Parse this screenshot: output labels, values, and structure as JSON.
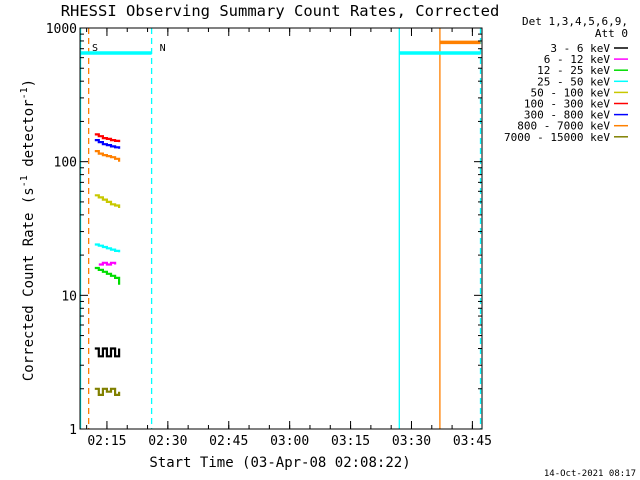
{
  "chart_data": {
    "type": "line",
    "title": "RHESSI Observing Summary Count Rates, Corrected",
    "xlabel": "Start Time (03-Apr-08 02:08:22)",
    "ylabel_main": "Corrected Count Rate (s",
    "ylabel_sup1": "-1",
    "ylabel_mid": " detector",
    "ylabel_sup2": "-1",
    "ylabel_end": ")",
    "y_scale": "log",
    "ylim": [
      1,
      1000
    ],
    "xlim": [
      "02:08:22",
      "03:47:22"
    ],
    "y_ticks": [
      "1",
      "10",
      "100",
      "1000"
    ],
    "x_ticks": [
      "02:15",
      "02:30",
      "02:45",
      "03:00",
      "03:15",
      "03:30",
      "03:45"
    ],
    "grid": false,
    "legend_header": [
      "Det 1,3,4,5,6,9,",
      "Att 0"
    ],
    "legend_placement": "right",
    "series": [
      {
        "name": "3 - 6 keV",
        "color": "#000000",
        "x": [
          "02:12",
          "02:13",
          "02:14",
          "02:15",
          "02:16",
          "02:17",
          "02:18"
        ],
        "y": [
          4.0,
          3.5,
          4.0,
          3.5,
          4.0,
          3.5,
          4.0
        ]
      },
      {
        "name": "6 - 12 keV",
        "color": "#ff00ff",
        "x": [
          "02:13",
          "02:14",
          "02:15",
          "02:16",
          "02:17"
        ],
        "y": [
          17,
          17.5,
          17,
          17.5,
          17
        ]
      },
      {
        "name": "12 - 25 keV",
        "color": "#00dd00",
        "x": [
          "02:12",
          "02:13",
          "02:14",
          "02:15",
          "02:16",
          "02:17",
          "02:18"
        ],
        "y": [
          16,
          15.5,
          15,
          14.5,
          14,
          13.5,
          12
        ]
      },
      {
        "name": "25 - 50 keV",
        "color": "#00ffff",
        "x": [
          "02:12",
          "02:13",
          "02:14",
          "02:15",
          "02:16",
          "02:17",
          "02:18"
        ],
        "y": [
          24,
          23.5,
          23,
          22.5,
          22,
          21.5,
          21
        ]
      },
      {
        "name": "50 - 100 keV",
        "color": "#c8c800",
        "x": [
          "02:12",
          "02:13",
          "02:14",
          "02:15",
          "02:16",
          "02:17",
          "02:18"
        ],
        "y": [
          56,
          54,
          52,
          50,
          48,
          47,
          45
        ]
      },
      {
        "name": "100 - 300 keV",
        "color": "#ff0000",
        "x": [
          "02:12",
          "02:13",
          "02:14",
          "02:15",
          "02:16",
          "02:17",
          "02:18"
        ],
        "y": [
          160,
          155,
          150,
          148,
          145,
          143,
          140
        ]
      },
      {
        "name": "300 - 800 keV",
        "color": "#0000ff",
        "x": [
          "02:12",
          "02:13",
          "02:14",
          "02:15",
          "02:16",
          "02:17",
          "02:18"
        ],
        "y": [
          145,
          140,
          135,
          133,
          130,
          128,
          125
        ]
      },
      {
        "name": "800 - 7000 keV",
        "color": "#ff8000",
        "x": [
          "02:12",
          "02:13",
          "02:14",
          "02:15",
          "02:16",
          "02:17",
          "02:18"
        ],
        "y": [
          120,
          115,
          112,
          110,
          108,
          105,
          100
        ]
      },
      {
        "name": "7000 - 15000 keV",
        "color": "#808000",
        "x": [
          "02:12",
          "02:13",
          "02:14",
          "02:15",
          "02:16",
          "02:17",
          "02:18"
        ],
        "y": [
          2.0,
          1.8,
          2.0,
          1.9,
          2.0,
          1.8,
          1.9
        ]
      }
    ],
    "annotations": {
      "flags": [
        {
          "label": "S",
          "color": "#ff8000",
          "x": "02:08:22"
        },
        {
          "label": "N",
          "color": "#00ffff",
          "x": "02:26"
        }
      ],
      "attenuator_segments": [
        {
          "color": "#00ffff",
          "x": [
            "02:08:22",
            "02:26"
          ],
          "y": 650
        },
        {
          "color": "#00ffff",
          "x": [
            "03:27",
            "03:47"
          ],
          "y": 650
        },
        {
          "color": "#ff8000",
          "x": [
            "03:37",
            "03:47"
          ],
          "y": 780
        }
      ],
      "vlines": [
        {
          "x": "02:08:30",
          "color": "#00ffff",
          "style": "solid"
        },
        {
          "x": "02:10:30",
          "color": "#ff8000",
          "style": "dashed"
        },
        {
          "x": "02:26:00",
          "color": "#00ffff",
          "style": "dashed"
        },
        {
          "x": "03:27:00",
          "color": "#00ffff",
          "style": "solid"
        },
        {
          "x": "03:37:00",
          "color": "#ff8000",
          "style": "solid"
        },
        {
          "x": "03:47:00",
          "color": "#00ffff",
          "style": "dashed"
        }
      ]
    },
    "timestamp": "14-Oct-2021 08:17"
  }
}
